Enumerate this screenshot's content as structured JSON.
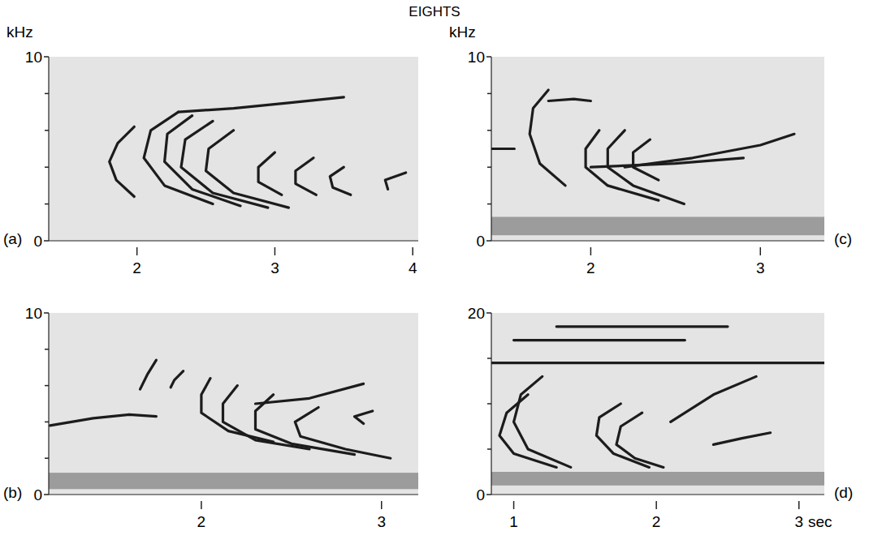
{
  "figure_title": "EIGHTS",
  "chart_data": [
    {
      "type": "spectrogram",
      "label": "(a)",
      "ylabel": "kHz",
      "xlim": [
        1.36,
        4.04
      ],
      "xticks": [
        2,
        3,
        4
      ],
      "ylim": [
        0,
        10
      ],
      "yticks": [
        0,
        10
      ],
      "yminor_ticks": [
        2,
        4,
        6,
        8
      ],
      "color": "#1c1c1c",
      "series": [
        {
          "x": [
            1.98,
            1.86,
            1.8,
            1.85,
            1.98
          ],
          "values": [
            6.2,
            5.3,
            4.3,
            3.3,
            2.4
          ]
        },
        {
          "x": [
            2.3,
            2.1,
            2.05,
            2.2,
            2.55
          ],
          "values": [
            7.0,
            6.0,
            4.5,
            3.0,
            2.0
          ]
        },
        {
          "x": [
            2.4,
            2.22,
            2.2,
            2.4,
            2.75
          ],
          "values": [
            6.8,
            5.8,
            4.3,
            2.8,
            1.9
          ]
        },
        {
          "x": [
            2.55,
            2.35,
            2.32,
            2.55,
            2.95
          ],
          "values": [
            6.5,
            5.5,
            4.0,
            2.6,
            1.8
          ]
        },
        {
          "x": [
            2.7,
            2.52,
            2.5,
            2.7,
            3.1
          ],
          "values": [
            6.0,
            5.0,
            3.8,
            2.6,
            1.8
          ]
        },
        {
          "x": [
            3.0,
            2.88,
            2.88,
            3.05
          ],
          "values": [
            4.8,
            4.0,
            3.2,
            2.5
          ]
        },
        {
          "x": [
            3.28,
            3.15,
            3.15,
            3.3
          ],
          "values": [
            4.5,
            3.8,
            3.1,
            2.5
          ]
        },
        {
          "x": [
            3.5,
            3.4,
            3.42,
            3.55
          ],
          "values": [
            4.0,
            3.5,
            2.9,
            2.5
          ]
        },
        {
          "x": [
            3.95,
            3.8,
            3.82
          ],
          "values": [
            3.7,
            3.3,
            2.8
          ]
        },
        {
          "x": [
            2.3,
            2.7,
            3.1,
            3.5
          ],
          "values": [
            7.0,
            7.2,
            7.5,
            7.8
          ]
        }
      ]
    },
    {
      "type": "spectrogram",
      "label": "(b)",
      "xlim": [
        1.153,
        3.204
      ],
      "xticks": [
        2,
        3
      ],
      "ylim": [
        0,
        10
      ],
      "yticks": [
        0,
        10
      ],
      "yminor_ticks": [
        2,
        4,
        6,
        8
      ],
      "color": "#1c1c1c",
      "band": [
        0.3,
        1.2
      ],
      "series": [
        {
          "x": [
            1.16,
            1.4,
            1.6,
            1.75
          ],
          "values": [
            3.8,
            4.2,
            4.4,
            4.3
          ]
        },
        {
          "x": [
            1.75,
            1.7,
            1.66
          ],
          "values": [
            7.4,
            6.6,
            5.8
          ]
        },
        {
          "x": [
            1.9,
            1.85,
            1.83
          ],
          "values": [
            6.8,
            6.3,
            5.9
          ]
        },
        {
          "x": [
            2.05,
            2.0,
            2.0,
            2.15,
            2.4
          ],
          "values": [
            6.4,
            5.5,
            4.5,
            3.5,
            2.9
          ]
        },
        {
          "x": [
            2.2,
            2.12,
            2.12,
            2.3,
            2.6
          ],
          "values": [
            6.0,
            5.0,
            4.0,
            3.0,
            2.5
          ]
        },
        {
          "x": [
            2.4,
            2.3,
            2.3,
            2.5,
            2.85
          ],
          "values": [
            5.5,
            4.6,
            3.6,
            2.8,
            2.2
          ]
        },
        {
          "x": [
            2.65,
            2.52,
            2.55,
            2.8,
            3.05
          ],
          "values": [
            4.8,
            4.0,
            3.2,
            2.5,
            2.0
          ]
        },
        {
          "x": [
            2.3,
            2.6,
            2.9
          ],
          "values": [
            5.0,
            5.3,
            6.1
          ]
        },
        {
          "x": [
            2.95,
            2.85,
            2.9
          ],
          "values": [
            4.6,
            4.3,
            3.9
          ]
        }
      ]
    },
    {
      "type": "spectrogram",
      "label": "(c)",
      "ylabel": "kHz",
      "xlim": [
        1.414,
        3.377
      ],
      "xticks": [
        2,
        3
      ],
      "ylim": [
        0,
        10
      ],
      "yticks": [
        0,
        10
      ],
      "yminor_ticks": [
        2,
        4,
        6,
        8
      ],
      "color": "#1c1c1c",
      "band": [
        0.3,
        1.3
      ],
      "series": [
        {
          "x": [
            1.414,
            1.55
          ],
          "values": [
            5.0,
            5.0
          ]
        },
        {
          "x": [
            1.75,
            1.66,
            1.64,
            1.7,
            1.85
          ],
          "values": [
            8.2,
            7.2,
            5.8,
            4.2,
            3.0
          ]
        },
        {
          "x": [
            1.75,
            1.9,
            2.0
          ],
          "values": [
            7.6,
            7.7,
            7.6
          ]
        },
        {
          "x": [
            2.05,
            1.97,
            1.97,
            2.1,
            2.4
          ],
          "values": [
            6.0,
            5.0,
            4.0,
            3.0,
            2.2
          ]
        },
        {
          "x": [
            2.2,
            2.1,
            2.1,
            2.25,
            2.55
          ],
          "values": [
            6.0,
            5.0,
            4.0,
            3.0,
            2.0
          ]
        },
        {
          "x": [
            2.35,
            2.25,
            2.25,
            2.4
          ],
          "values": [
            5.5,
            4.8,
            4.0,
            3.3
          ]
        },
        {
          "x": [
            2.2,
            2.6,
            3.0,
            3.2
          ],
          "values": [
            4.0,
            4.5,
            5.2,
            5.8
          ]
        },
        {
          "x": [
            2.0,
            2.5,
            2.9
          ],
          "values": [
            4.0,
            4.2,
            4.5
          ]
        }
      ]
    },
    {
      "type": "spectrogram",
      "label": "(d)",
      "xlabel": "sec",
      "xlim": [
        0.843,
        3.178
      ],
      "xticks": [
        1,
        2,
        3
      ],
      "ylim": [
        0,
        20
      ],
      "yticks": [
        0,
        20
      ],
      "yminor_ticks": [
        5,
        10,
        15
      ],
      "color": "#1c1c1c",
      "band": [
        1.0,
        2.5
      ],
      "series": [
        {
          "x": [
            1.2,
            1.05,
            1.0,
            1.1,
            1.4
          ],
          "values": [
            13,
            11,
            8,
            5,
            3
          ]
        },
        {
          "x": [
            1.1,
            0.95,
            0.9,
            1.0,
            1.3
          ],
          "values": [
            11,
            9,
            6.5,
            4.5,
            3
          ]
        },
        {
          "x": [
            1.75,
            1.6,
            1.58,
            1.7,
            1.95
          ],
          "values": [
            10,
            8.5,
            6.5,
            4.5,
            3
          ]
        },
        {
          "x": [
            1.9,
            1.75,
            1.72,
            1.85,
            2.05
          ],
          "values": [
            9,
            7.5,
            5.5,
            4,
            3
          ]
        },
        {
          "x": [
            2.1,
            2.4,
            2.7
          ],
          "values": [
            8,
            11,
            13
          ]
        },
        {
          "x": [
            2.4,
            2.6,
            2.8
          ],
          "values": [
            5.5,
            6.2,
            6.8
          ]
        },
        {
          "x": [
            0.843,
            3.178
          ],
          "values": [
            14.5,
            14.5
          ]
        },
        {
          "x": [
            1.3,
            2.5
          ],
          "values": [
            18.5,
            18.5
          ]
        },
        {
          "x": [
            1.0,
            2.2
          ],
          "values": [
            17.0,
            17.0
          ]
        }
      ]
    }
  ]
}
